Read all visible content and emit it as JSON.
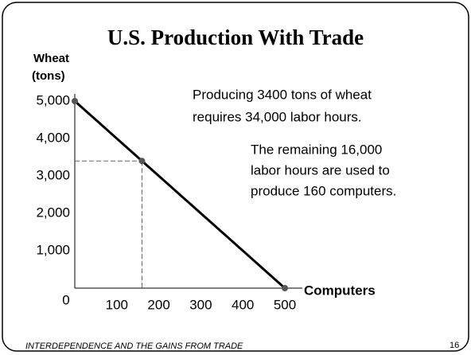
{
  "chart_data": {
    "type": "line",
    "title": "U.S. Production With Trade",
    "ylabel": [
      "Wheat",
      "(tons)"
    ],
    "xlabel": "Computers",
    "x": [
      0,
      160,
      500
    ],
    "values": [
      5000,
      3400,
      0
    ],
    "color": "#000000",
    "marker_color": "#555555",
    "xlim": [
      0,
      500
    ],
    "ylim": [
      0,
      5000
    ],
    "xticks": [
      100,
      200,
      300,
      400,
      500
    ],
    "yticks": [
      0,
      {
        "value": 1000,
        "label": "1,000"
      },
      {
        "value": 2000,
        "label": "2,000"
      },
      {
        "value": 3000,
        "label": "3,000"
      },
      {
        "value": 4000,
        "label": "4,000"
      },
      {
        "value": 5000,
        "label": "5,000"
      }
    ],
    "annotations": [
      [
        "Producing 3400 tons of wheat",
        "requires 34,000 labor hours."
      ],
      [
        "The remaining 16,000",
        "labor hours are used to",
        "produce 160 computers."
      ]
    ]
  },
  "footer": {
    "text": "INTERDEPENDENCE AND THE GAINS FROM TRADE",
    "page_number": 16
  }
}
